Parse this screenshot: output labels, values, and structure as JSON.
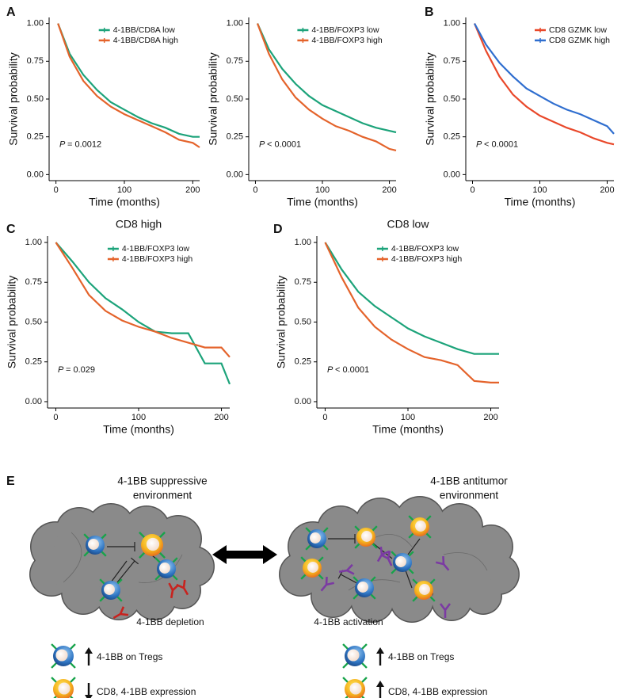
{
  "chart_data": [
    {
      "type": "line",
      "label": "A",
      "xlabel": "Time (months)",
      "ylabel": "Survival probability",
      "legend": "upper center",
      "x": [
        3,
        20,
        40,
        60,
        80,
        100,
        120,
        140,
        160,
        180,
        200,
        210
      ],
      "series": [
        {
          "name": "4-1BB/CD8A low",
          "color": "#1ca37a",
          "values": [
            1.0,
            0.8,
            0.66,
            0.56,
            0.48,
            0.43,
            0.38,
            0.34,
            0.31,
            0.27,
            0.25,
            0.25
          ]
        },
        {
          "name": "4-1BB/CD8A high",
          "color": "#e4632b",
          "values": [
            1.0,
            0.78,
            0.62,
            0.52,
            0.45,
            0.4,
            0.36,
            0.32,
            0.28,
            0.23,
            0.21,
            0.18
          ]
        }
      ],
      "xlim": [
        -10,
        210
      ],
      "ylim": [
        -0.04,
        1.04
      ],
      "xticks": [
        0,
        100,
        200
      ],
      "yticks": [
        {
          "value": 0,
          "label": "0.00"
        },
        {
          "value": 0.25,
          "label": "0.25"
        },
        {
          "value": 0.5,
          "label": "0.50"
        },
        {
          "value": 0.75,
          "label": "0.75"
        },
        {
          "value": 1,
          "label": "1.00"
        }
      ],
      "annotation": {
        "symbol": "P",
        "text": "= 0.0012"
      }
    },
    {
      "type": "line",
      "xlabel": "Time (months)",
      "ylabel": "Survival probability",
      "legend": "upper center",
      "x": [
        3,
        20,
        40,
        60,
        80,
        100,
        120,
        140,
        160,
        180,
        200,
        210
      ],
      "series": [
        {
          "name": "4-1BB/FOXP3 low",
          "color": "#1ca37a",
          "values": [
            1.0,
            0.83,
            0.7,
            0.6,
            0.52,
            0.46,
            0.42,
            0.38,
            0.34,
            0.31,
            0.29,
            0.28
          ]
        },
        {
          "name": "4-1BB/FOXP3 high",
          "color": "#e4632b",
          "values": [
            1.0,
            0.8,
            0.63,
            0.51,
            0.43,
            0.37,
            0.32,
            0.29,
            0.25,
            0.22,
            0.17,
            0.16
          ]
        }
      ],
      "xlim": [
        -10,
        210
      ],
      "ylim": [
        -0.04,
        1.04
      ],
      "xticks": [
        0,
        100,
        200
      ],
      "yticks": [
        {
          "value": 0,
          "label": "0.00"
        },
        {
          "value": 0.25,
          "label": "0.25"
        },
        {
          "value": 0.5,
          "label": "0.50"
        },
        {
          "value": 0.75,
          "label": "0.75"
        },
        {
          "value": 1,
          "label": "1.00"
        }
      ],
      "annotation": {
        "symbol": "P",
        "text": "< 0.0001"
      }
    },
    {
      "type": "line",
      "label": "B",
      "xlabel": "Time (months)",
      "ylabel": "Survival probability",
      "legend": "upper right",
      "x": [
        3,
        20,
        40,
        60,
        80,
        100,
        120,
        140,
        160,
        180,
        200,
        210
      ],
      "series": [
        {
          "name": "CD8 GZMK low",
          "color": "#e9482a",
          "values": [
            1.0,
            0.82,
            0.65,
            0.53,
            0.45,
            0.39,
            0.35,
            0.31,
            0.28,
            0.24,
            0.21,
            0.2
          ]
        },
        {
          "name": "CD8 GZMK high",
          "color": "#2f6ecf",
          "values": [
            1.0,
            0.86,
            0.74,
            0.65,
            0.57,
            0.52,
            0.47,
            0.43,
            0.4,
            0.36,
            0.32,
            0.27
          ]
        }
      ],
      "xlim": [
        -10,
        210
      ],
      "ylim": [
        -0.04,
        1.04
      ],
      "xticks": [
        0,
        100,
        200
      ],
      "yticks": [
        {
          "value": 0,
          "label": "0.00"
        },
        {
          "value": 0.25,
          "label": "0.25"
        },
        {
          "value": 0.5,
          "label": "0.50"
        },
        {
          "value": 0.75,
          "label": "0.75"
        },
        {
          "value": 1,
          "label": "1.00"
        }
      ],
      "annotation": {
        "symbol": "P",
        "text": "< 0.0001"
      }
    },
    {
      "type": "line",
      "label": "C",
      "title": "CD8 high",
      "xlabel": "Time (months)",
      "ylabel": "Survival probability",
      "legend": "upper center",
      "x": [
        0,
        20,
        40,
        60,
        80,
        100,
        120,
        140,
        160,
        180,
        200,
        210
      ],
      "series": [
        {
          "name": "4-1BB/FOXP3 low",
          "color": "#1ca37a",
          "values": [
            1.0,
            0.88,
            0.75,
            0.65,
            0.58,
            0.5,
            0.44,
            0.43,
            0.43,
            0.24,
            0.24,
            0.11
          ]
        },
        {
          "name": "4-1BB/FOXP3 high",
          "color": "#e4632b",
          "values": [
            1.0,
            0.84,
            0.67,
            0.57,
            0.51,
            0.47,
            0.44,
            0.4,
            0.37,
            0.34,
            0.34,
            0.28
          ]
        }
      ],
      "xlim": [
        -10,
        210
      ],
      "ylim": [
        -0.04,
        1.04
      ],
      "xticks": [
        0,
        100,
        200
      ],
      "yticks": [
        {
          "value": 0,
          "label": "0.00"
        },
        {
          "value": 0.25,
          "label": "0.25"
        },
        {
          "value": 0.5,
          "label": "0.50"
        },
        {
          "value": 0.75,
          "label": "0.75"
        },
        {
          "value": 1,
          "label": "1.00"
        }
      ],
      "annotation": {
        "symbol": "P",
        "text": "= 0.029"
      }
    },
    {
      "type": "line",
      "label": "D",
      "title": "CD8 low",
      "xlabel": "Time (months)",
      "ylabel": "Survival probability",
      "legend": "upper center",
      "x": [
        0,
        20,
        40,
        60,
        80,
        100,
        120,
        140,
        160,
        180,
        200,
        210
      ],
      "series": [
        {
          "name": "4-1BB/FOXP3 low",
          "color": "#1ca37a",
          "values": [
            1.0,
            0.83,
            0.69,
            0.6,
            0.53,
            0.46,
            0.41,
            0.37,
            0.33,
            0.3,
            0.3,
            0.3
          ]
        },
        {
          "name": "4-1BB/FOXP3 high",
          "color": "#e4632b",
          "values": [
            1.0,
            0.78,
            0.59,
            0.47,
            0.39,
            0.33,
            0.28,
            0.26,
            0.23,
            0.13,
            0.12,
            0.12
          ]
        }
      ],
      "xlim": [
        -10,
        210
      ],
      "ylim": [
        -0.04,
        1.04
      ],
      "xticks": [
        0,
        100,
        200
      ],
      "yticks": [
        {
          "value": 0,
          "label": "0.00"
        },
        {
          "value": 0.25,
          "label": "0.25"
        },
        {
          "value": 0.5,
          "label": "0.50"
        },
        {
          "value": 0.75,
          "label": "0.75"
        },
        {
          "value": 1,
          "label": "1.00"
        }
      ],
      "annotation": {
        "symbol": "P",
        "text": "< 0.0001"
      }
    }
  ],
  "diagram": {
    "label": "E",
    "left_title": [
      "4-1BB suppressive",
      "environment"
    ],
    "right_title": [
      "4-1BB antitumor",
      "environment"
    ],
    "left_caption": "4-1BB depletion",
    "right_caption": "4-1BB activation",
    "left_legend": [
      "4-1BB on Tregs",
      "CD8, 4-1BB expression"
    ],
    "right_legend": [
      "4-1BB on Tregs",
      "CD8, 4-1BB expression"
    ]
  }
}
